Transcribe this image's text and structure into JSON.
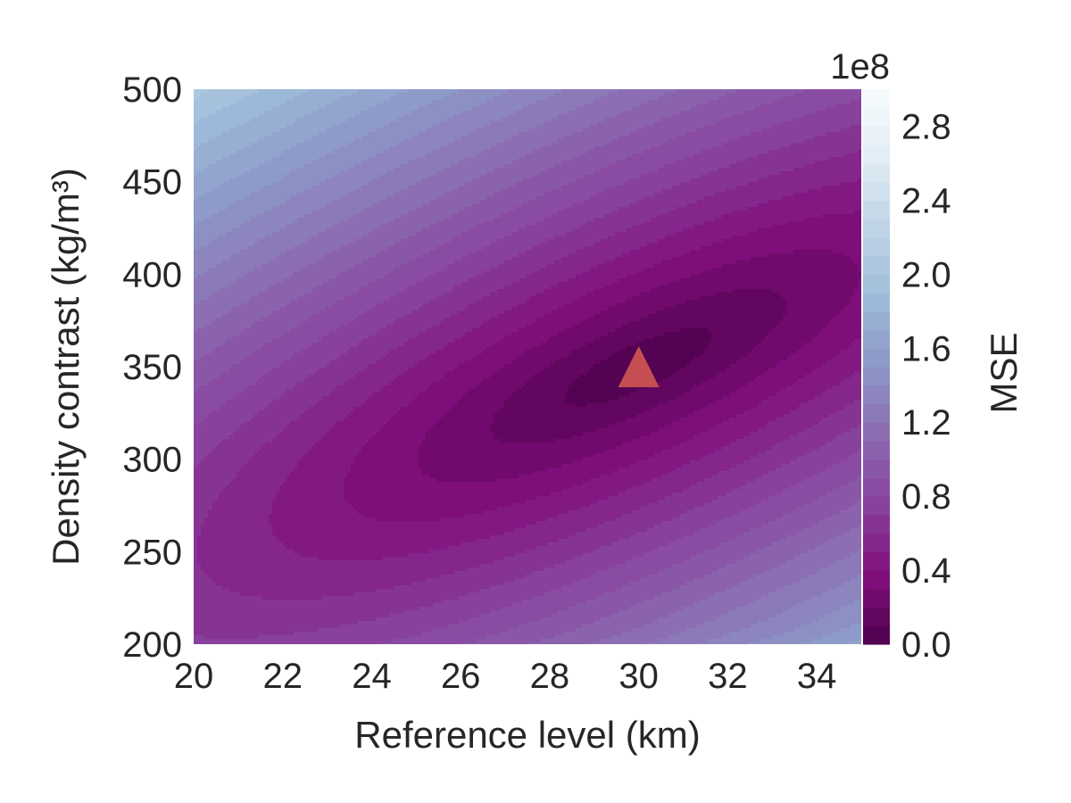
{
  "chart_data": {
    "type": "contour",
    "xlabel": "Reference level (km)",
    "ylabel": "Density contrast (kg/m³)",
    "xlim": [
      20,
      35
    ],
    "ylim": [
      200,
      500
    ],
    "x_ticks": [
      "20",
      "22",
      "24",
      "26",
      "28",
      "30",
      "32",
      "34"
    ],
    "y_ticks": [
      "200",
      "250",
      "300",
      "350",
      "400",
      "450",
      "500"
    ],
    "grid": false,
    "colorbar": {
      "label": "MSE",
      "offset_text": "1e8",
      "range": [
        0.0,
        3.0
      ],
      "ticks": [
        "0.0",
        "0.4",
        "0.8",
        "1.2",
        "1.6",
        "2.0",
        "2.4",
        "2.8"
      ],
      "colormap": "BuPu_r",
      "colors": [
        "#4d004b",
        "#810f7c",
        "#88419d",
        "#8c6bb1",
        "#8c96c6",
        "#9ebcda",
        "#bfd3e6",
        "#e0ecf4",
        "#f7fcfd"
      ]
    },
    "minimum_marker": {
      "shape": "triangle",
      "x": 30,
      "y": 350,
      "color": "#c44e52"
    }
  }
}
